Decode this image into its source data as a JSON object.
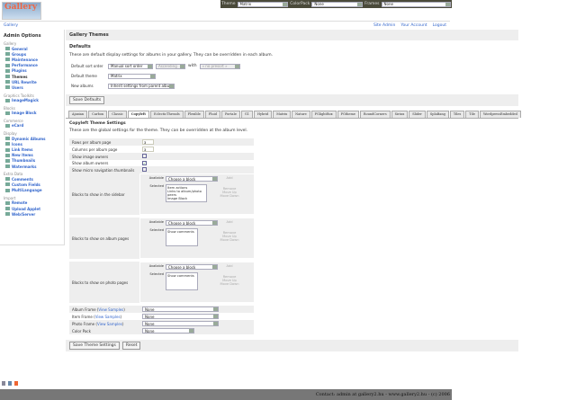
{
  "topbar": {
    "theme_label": "Theme",
    "theme_value": "Matrix",
    "colorpack_label": "ColorPack",
    "colorpack_value": "None",
    "frames_label": "Frames",
    "frames_value": "None"
  },
  "logo_text": "Gallery",
  "breadcrumb": "Gallery",
  "header_links": [
    "Site Admin",
    "Your Account",
    "Logout"
  ],
  "sidebar": {
    "title": "Admin Options",
    "groups": [
      {
        "name": "Gallery",
        "items": [
          "General",
          "Groups",
          "Maintenance",
          "Performance",
          "Plugins",
          "Themes",
          "URL Rewrite",
          "Users"
        ]
      },
      {
        "name": "Graphics Toolkits",
        "items": [
          "ImageMagick"
        ]
      },
      {
        "name": "Blocks",
        "items": [
          "Image Block"
        ]
      },
      {
        "name": "Commerce",
        "items": [
          "eCard"
        ]
      },
      {
        "name": "Display",
        "items": [
          "Dynamic Albums",
          "Icons",
          "Link Items",
          "New Items",
          "Thumbnails",
          "Watermarks"
        ]
      },
      {
        "name": "Extra Data",
        "items": [
          "Comments",
          "Custom Fields",
          "MultiLanguage"
        ]
      },
      {
        "name": "Import",
        "items": [
          "Remote",
          "Upload Applet",
          "Web/Server"
        ]
      }
    ]
  },
  "page_title": "Gallery Themes",
  "defaults": {
    "title": "Defaults",
    "desc": "These are default display settings for albums in your gallery. They can be overridden in each album.",
    "sort_label": "Default sort order",
    "sort_value": "Manual sort order",
    "sort_dir": "Ascending",
    "with_label": "with",
    "with_value": "« no presort »",
    "theme_label": "Default theme",
    "theme_value": "Matrix",
    "new_label": "New albums",
    "new_value": "Inherit settings from parent album",
    "save": "Save Defaults"
  },
  "tabs": [
    "Ajaxian",
    "Carbon",
    "Classic",
    "Copyleft",
    "EclecticThreads",
    "Flexible",
    "Fluid",
    "PortaIe",
    "G1",
    "Hybrid",
    "Matrix",
    "Nature",
    "PGlightBox",
    "PGtheme",
    "RoundCorners",
    "Siriux",
    "Slider",
    "SplaBang",
    "Tiles",
    "Tile",
    "WordpressEmbedded"
  ],
  "active_tab": "Copyleft",
  "settings": {
    "title": "Copyleft Theme Settings",
    "desc": "These are the global settings for the theme. They can be overridden at the album level.",
    "rows_label": "Rows per album page",
    "rows_value": "3",
    "cols_label": "Columns per album page",
    "cols_value": "3",
    "image_owners_label": "Show image owners",
    "image_owners": false,
    "album_owners_label": "Show album owners",
    "album_owners": true,
    "micro_label": "Show micro navigation thumbnails",
    "micro": false,
    "available_label": "Available",
    "selected_label": "Selected",
    "choose": "Choose a block",
    "add": "Add",
    "remove": "Remove",
    "up": "Move Up",
    "down": "Move Down",
    "blocks": [
      {
        "label": "Blocks to show in the sidebar",
        "selected": [
          "Item actions",
          "Links to album/photo peers",
          "Image Block"
        ]
      },
      {
        "label": "Blocks to show on album pages",
        "selected": [
          "Show comments"
        ]
      },
      {
        "label": "Blocks to show on photo pages",
        "selected": [
          "Show comments"
        ]
      }
    ],
    "frames": [
      {
        "label": "Album Frame",
        "link": "View Samples",
        "value": "None"
      },
      {
        "label": "Item Frame",
        "link": "View Samples",
        "value": "None"
      },
      {
        "label": "Photo Frame",
        "link": "View Samples",
        "value": "None"
      }
    ],
    "colorpack_label": "Color Pack",
    "colorpack_value": "None",
    "save": "Save Theme Settings",
    "reset": "Reset"
  },
  "badges": [
    "W3C XHTML 1.0",
    "CSS",
    "Gallery 2"
  ],
  "footer": "Contact: admin at gallery2.hu - www.gallery2.hu - (c) 2006"
}
